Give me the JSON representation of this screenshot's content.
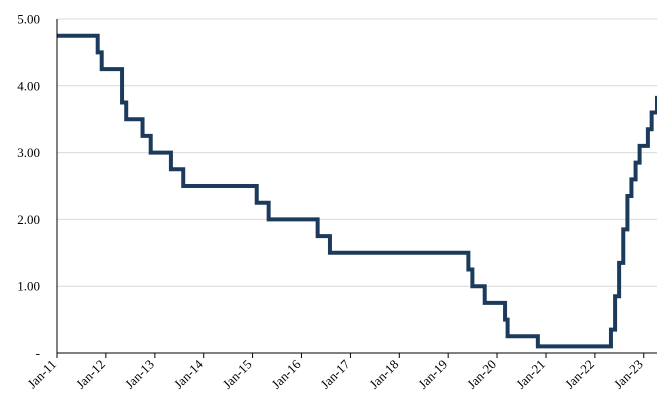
{
  "chart_data": {
    "type": "line",
    "title": "",
    "xlabel": "",
    "ylabel": "",
    "xlim": [
      "2011-01-01",
      "2023-04-10"
    ],
    "ylim": [
      0,
      5
    ],
    "y_ticks": [
      {
        "value": 0,
        "label": "-"
      },
      {
        "value": 1,
        "label": "1.00"
      },
      {
        "value": 2,
        "label": "2.00"
      },
      {
        "value": 3,
        "label": "3.00"
      },
      {
        "value": 4,
        "label": "4.00"
      },
      {
        "value": 5,
        "label": "5.00"
      }
    ],
    "x_ticks": [
      {
        "value": "2011-01-01",
        "label": "Jan-11"
      },
      {
        "value": "2012-01-01",
        "label": "Jan-12"
      },
      {
        "value": "2013-01-01",
        "label": "Jan-13"
      },
      {
        "value": "2014-01-01",
        "label": "Jan-14"
      },
      {
        "value": "2015-01-01",
        "label": "Jan-15"
      },
      {
        "value": "2016-01-01",
        "label": "Jan-16"
      },
      {
        "value": "2017-01-01",
        "label": "Jan-17"
      },
      {
        "value": "2018-01-01",
        "label": "Jan-18"
      },
      {
        "value": "2019-01-01",
        "label": "Jan-19"
      },
      {
        "value": "2020-01-01",
        "label": "Jan-20"
      },
      {
        "value": "2021-01-01",
        "label": "Jan-21"
      },
      {
        "value": "2022-01-01",
        "label": "Jan-22"
      },
      {
        "value": "2023-01-01",
        "label": "Jan-23"
      }
    ],
    "grid": {
      "horizontal": true,
      "vertical": false
    },
    "legend": "none",
    "series": [
      {
        "color": "#1b3a5c",
        "step": true,
        "points": [
          {
            "x": "2011-01-01",
            "y": 4.75
          },
          {
            "x": "2011-11-01",
            "y": 4.5
          },
          {
            "x": "2011-12-01",
            "y": 4.25
          },
          {
            "x": "2012-05-01",
            "y": 3.75
          },
          {
            "x": "2012-06-01",
            "y": 3.5
          },
          {
            "x": "2012-10-01",
            "y": 3.25
          },
          {
            "x": "2012-12-01",
            "y": 3.0
          },
          {
            "x": "2013-05-01",
            "y": 2.75
          },
          {
            "x": "2013-08-01",
            "y": 2.5
          },
          {
            "x": "2015-02-01",
            "y": 2.25
          },
          {
            "x": "2015-05-01",
            "y": 2.0
          },
          {
            "x": "2016-05-01",
            "y": 1.75
          },
          {
            "x": "2016-08-01",
            "y": 1.5
          },
          {
            "x": "2019-06-01",
            "y": 1.25
          },
          {
            "x": "2019-07-01",
            "y": 1.0
          },
          {
            "x": "2019-10-01",
            "y": 0.75
          },
          {
            "x": "2020-03-01",
            "y": 0.5
          },
          {
            "x": "2020-03-20",
            "y": 0.25
          },
          {
            "x": "2020-11-01",
            "y": 0.1
          },
          {
            "x": "2022-05-01",
            "y": 0.35
          },
          {
            "x": "2022-06-01",
            "y": 0.85
          },
          {
            "x": "2022-07-01",
            "y": 1.35
          },
          {
            "x": "2022-08-01",
            "y": 1.85
          },
          {
            "x": "2022-09-01",
            "y": 2.35
          },
          {
            "x": "2022-10-01",
            "y": 2.6
          },
          {
            "x": "2022-11-01",
            "y": 2.85
          },
          {
            "x": "2022-12-01",
            "y": 3.1
          },
          {
            "x": "2023-02-01",
            "y": 3.35
          },
          {
            "x": "2023-03-01",
            "y": 3.6
          },
          {
            "x": "2023-04-10",
            "y": 3.85
          }
        ]
      }
    ]
  }
}
